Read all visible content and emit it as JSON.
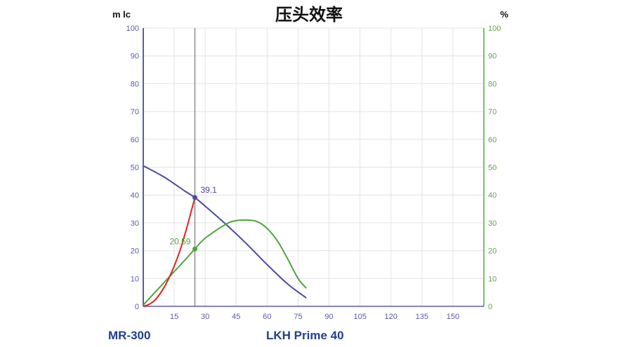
{
  "chart_data": {
    "type": "line",
    "title": "压头效率",
    "y_left_label": "m lc",
    "y_right_label": "%",
    "xlim": [
      0,
      165
    ],
    "ylim_left": [
      0,
      100
    ],
    "ylim_right": [
      0,
      100
    ],
    "x_ticks": [
      "15",
      "30",
      "45",
      "60",
      "75",
      "90",
      "105",
      "120",
      "135",
      "150"
    ],
    "y_left_ticks": [
      "0",
      "10",
      "20",
      "30",
      "40",
      "50",
      "60",
      "70",
      "80",
      "90",
      "100"
    ],
    "y_right_ticks": [
      "0",
      "10",
      "20",
      "30",
      "40",
      "50",
      "60",
      "70",
      "80",
      "90",
      "100"
    ],
    "grid": true,
    "series": [
      {
        "axis": "left",
        "color": "#4b4b9e",
        "x": [
          0,
          10,
          20,
          25,
          30,
          40,
          50,
          60,
          70,
          79
        ],
        "y": [
          50.5,
          46.5,
          41.5,
          39.1,
          36,
          29.5,
          22.5,
          15,
          8,
          3
        ]
      },
      {
        "axis": "right",
        "color": "#4fa43f",
        "x": [
          0,
          10,
          20,
          25,
          30,
          40,
          45,
          50,
          55,
          60,
          65,
          70,
          75,
          79
        ],
        "y": [
          0.5,
          8.5,
          16.5,
          20.59,
          24.5,
          29.5,
          30.8,
          31,
          30.5,
          28,
          23.5,
          17,
          10,
          6.5
        ]
      },
      {
        "axis": "left",
        "color": "#e62020",
        "x": [
          0,
          3,
          6,
          9,
          12,
          15,
          18,
          21,
          23,
          25
        ],
        "y": [
          0,
          0.8,
          2.5,
          5.5,
          9.5,
          14.5,
          20.5,
          28,
          33.5,
          39.1
        ]
      }
    ],
    "marker": {
      "x": 25,
      "head_value": 39.1,
      "head_label": "39.1",
      "efficiency_value": 20.59,
      "efficiency_label": "20.59"
    }
  },
  "footer": {
    "left_label": "MR-300",
    "right_label": "LKH Prime 40"
  }
}
